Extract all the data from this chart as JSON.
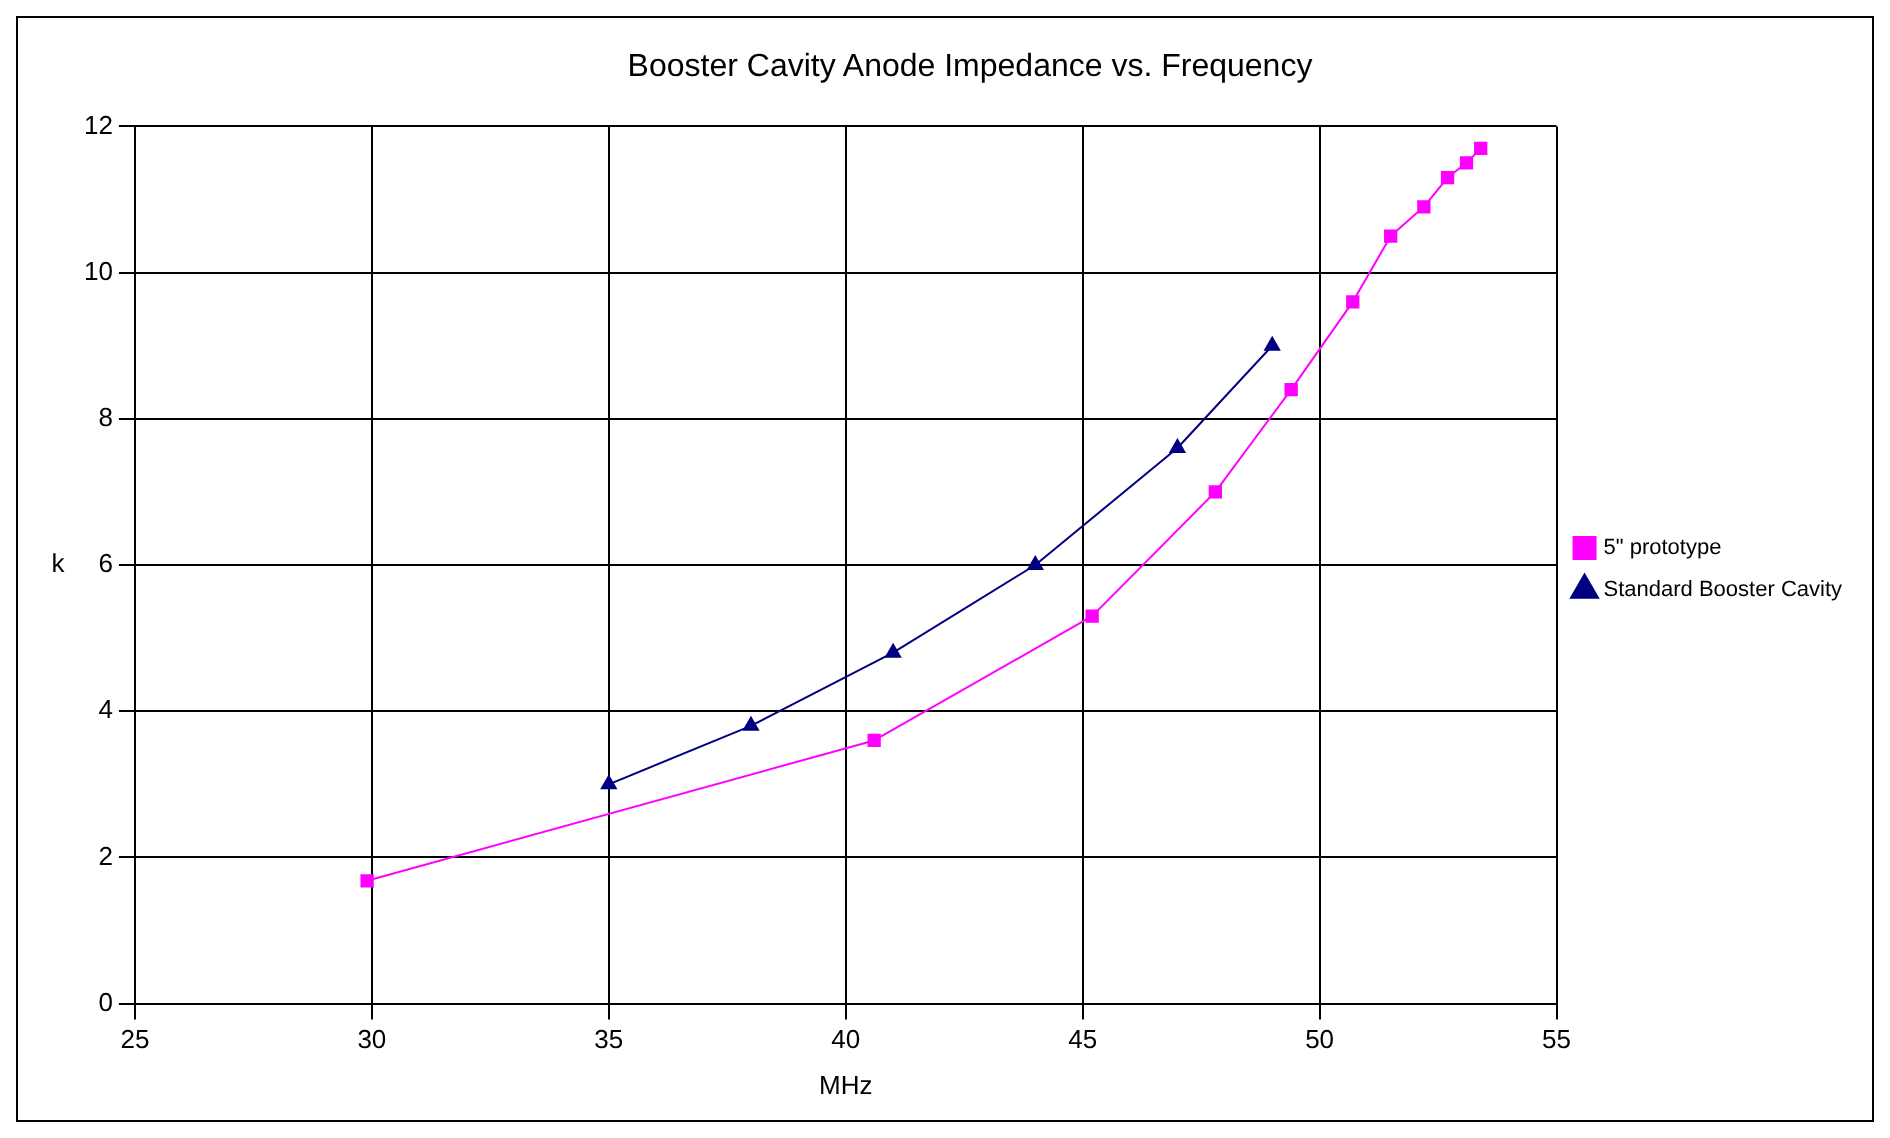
{
  "chart_data": {
    "type": "line",
    "title": "Booster Cavity Anode Impedance vs. Frequency",
    "xlabel": "MHz",
    "ylabel": "k",
    "xlim": [
      25,
      55
    ],
    "xticks": [
      25,
      30,
      35,
      40,
      45,
      50,
      55
    ],
    "ylim": [
      0,
      12
    ],
    "yticks": [
      0,
      2,
      4,
      6,
      8,
      10,
      12
    ],
    "grid": true,
    "legend": "right",
    "series": [
      {
        "name": "5\" prototype",
        "color": "#ff00ff",
        "marker": "square",
        "x": [
          29.9,
          40.6,
          45.2,
          47.8,
          49.4,
          50.7,
          51.5,
          52.2,
          52.7,
          53.1,
          53.4
        ],
        "values": [
          1.68,
          3.6,
          5.3,
          7.0,
          8.4,
          9.6,
          10.5,
          10.9,
          11.3,
          11.5,
          11.7
        ]
      },
      {
        "name": "Standard Booster Cavity",
        "color": "#000080",
        "marker": "triangle",
        "x": [
          35,
          38,
          41,
          44,
          47,
          49
        ],
        "values": [
          3.0,
          3.8,
          4.8,
          6.0,
          7.6,
          9.0
        ]
      }
    ]
  }
}
